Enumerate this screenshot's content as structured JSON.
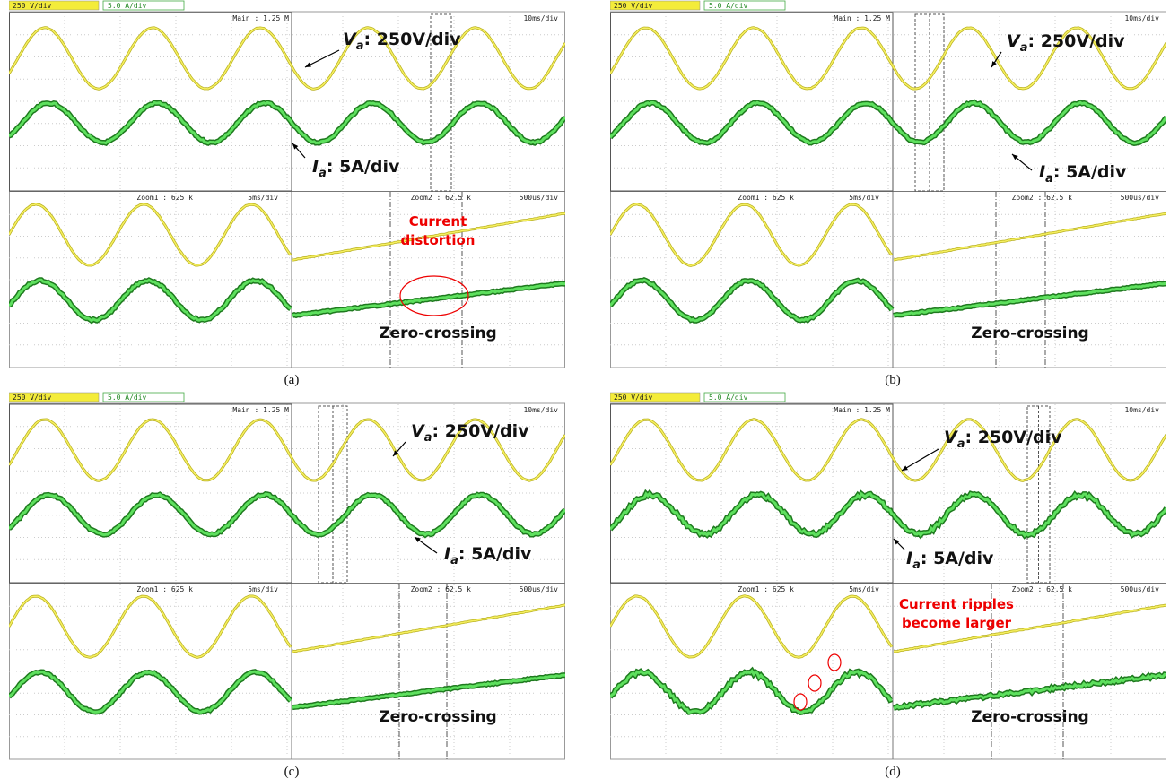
{
  "panels": [
    {
      "caption": "(a)",
      "volt_scale": "250 V/div",
      "amp_scale": "5.0 A/div",
      "main": "Main : 1.25 M",
      "main_div": "10ms/div",
      "zoom1": "Zoom1 : 625 k",
      "zoom1_div": "5ms/div",
      "zoom2": "Zoom2 : 62.5 k",
      "zoom2_div": "500us/div",
      "va": {
        "symbol": "V",
        "subscript": "a",
        "text": ": 250V/div"
      },
      "ia": {
        "symbol": "I",
        "subscript": "a",
        "text": ": 5A/div"
      },
      "note": [
        "Current",
        "distortion"
      ],
      "zero": "Zero-crossing"
    },
    {
      "caption": "(b)",
      "volt_scale": "250 V/div",
      "amp_scale": "5.0 A/div",
      "main": "Main : 1.25 M",
      "main_div": "10ms/div",
      "zoom1": "Zoom1 : 625 k",
      "zoom1_div": "5ms/div",
      "zoom2": "Zoom2 : 62.5 k",
      "zoom2_div": "500us/div",
      "va": {
        "symbol": "V",
        "subscript": "a",
        "text": ": 250V/div"
      },
      "ia": {
        "symbol": "I",
        "subscript": "a",
        "text": ": 5A/div"
      },
      "zero": "Zero-crossing"
    },
    {
      "caption": "(c)",
      "volt_scale": "250 V/div",
      "amp_scale": "5.0 A/div",
      "main": "Main : 1.25 M",
      "main_div": "10ms/div",
      "zoom1": "Zoom1 : 625 k",
      "zoom1_div": "5ms/div",
      "zoom2": "Zoom2 : 62.5 k",
      "zoom2_div": "500us/div",
      "va": {
        "symbol": "V",
        "subscript": "a",
        "text": ": 250V/div"
      },
      "ia": {
        "symbol": "I",
        "subscript": "a",
        "text": ": 5A/div"
      },
      "zero": "Zero-crossing"
    },
    {
      "caption": "(d)",
      "volt_scale": "250 V/div",
      "amp_scale": "5.0 A/div",
      "main": "Main : 1.25 M",
      "main_div": "10ms/div",
      "zoom1": "Zoom1 : 625 k",
      "zoom1_div": "5ms/div",
      "zoom2": "Zoom2 : 62.5 k",
      "zoom2_div": "500us/div",
      "va": {
        "symbol": "V",
        "subscript": "a",
        "text": ": 250V/div"
      },
      "ia": {
        "symbol": "I",
        "subscript": "a",
        "text": ": 5A/div"
      },
      "note": [
        "Current ripples",
        "become larger"
      ],
      "zero": "Zero-crossing"
    }
  ]
}
